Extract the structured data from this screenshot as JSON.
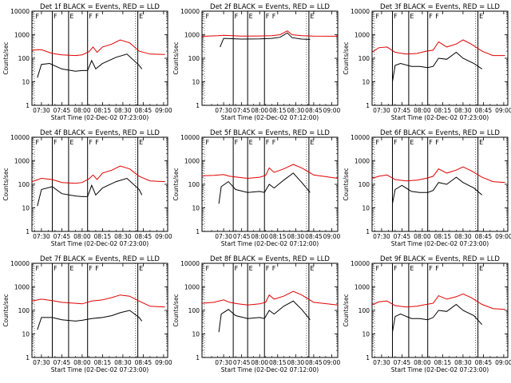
{
  "ylabel": "Counts/sec",
  "xlabel_prefix": "Start Time",
  "yticks": [
    1,
    10,
    100,
    1000,
    10000
  ],
  "ytick_labels": [
    "1",
    "10",
    "100",
    "1000",
    "10000"
  ],
  "colors": {
    "events": "#000000",
    "lld": "#e00000",
    "frame": "#000000"
  },
  "chart_data": [
    {
      "type": "line",
      "title": "Det 1f BLACK = Events, RED = LLD",
      "xlabel": "Start Time (02-Dec-02 07:23:00)",
      "ylabel": "Counts/sec",
      "x_range": [
        "07:23",
        "09:03"
      ],
      "y_range": [
        1,
        10000
      ],
      "y_scale": "log",
      "xtick_labels": [
        "07:30",
        "07:45",
        "08:00",
        "08:15",
        "08:30",
        "08:45",
        "09:00"
      ],
      "markers": [
        "F",
        "F",
        "E",
        "F",
        "F",
        "E"
      ],
      "series": [
        {
          "name": "Events",
          "color": "#000000",
          "times": [
            "07:27",
            "07:30",
            "07:36",
            "07:45",
            "07:55",
            "08:00",
            "08:04",
            "08:07",
            "08:10",
            "08:15",
            "08:25",
            "08:33",
            "08:42",
            "08:44"
          ],
          "values": [
            15,
            55,
            60,
            35,
            28,
            30,
            30,
            80,
            35,
            60,
            110,
            150,
            50,
            35
          ]
        },
        {
          "name": "LLD",
          "color": "#e00000",
          "times": [
            "07:23",
            "07:30",
            "07:38",
            "07:45",
            "07:55",
            "08:00",
            "08:05",
            "08:08",
            "08:11",
            "08:15",
            "08:22",
            "08:28",
            "08:35",
            "08:42",
            "08:50",
            "09:01"
          ],
          "values": [
            220,
            230,
            160,
            140,
            130,
            140,
            190,
            300,
            180,
            300,
            400,
            600,
            450,
            200,
            150,
            145
          ]
        }
      ]
    },
    {
      "type": "line",
      "title": "Det 2f BLACK = Events, RED = LLD",
      "xlabel": "Start Time (02-Dec-02 07:12:00)",
      "ylabel": "Counts/sec",
      "x_range": [
        "07:12",
        "09:05"
      ],
      "y_range": [
        1,
        10000
      ],
      "y_scale": "log",
      "xtick_labels": [
        "07:30",
        "07:45",
        "08:00",
        "08:15",
        "08:30",
        "08:45",
        "09:00"
      ],
      "markers": [
        "F",
        "F",
        "E",
        "F",
        "F",
        "E"
      ],
      "series": [
        {
          "name": "Events",
          "color": "#000000",
          "times": [
            "07:27",
            "07:30",
            "07:45",
            "08:00",
            "08:10",
            "08:17",
            "08:23",
            "08:27",
            "08:35",
            "08:42"
          ],
          "values": [
            300,
            700,
            650,
            660,
            700,
            780,
            1200,
            750,
            650,
            630
          ]
        },
        {
          "name": "LLD",
          "color": "#e00000",
          "times": [
            "07:12",
            "07:25",
            "07:30",
            "07:45",
            "08:00",
            "08:10",
            "08:17",
            "08:23",
            "08:27",
            "08:35",
            "08:45",
            "09:05"
          ],
          "values": [
            850,
            900,
            950,
            870,
            880,
            900,
            1000,
            1450,
            1000,
            900,
            870,
            860
          ]
        }
      ]
    },
    {
      "type": "line",
      "title": "Det 3f BLACK = Events, RED = LLD",
      "xlabel": "Start Time (02-Dec-02 07:23:00)",
      "ylabel": "Counts/sec",
      "x_range": [
        "07:23",
        "09:03"
      ],
      "y_range": [
        1,
        10000
      ],
      "y_scale": "log",
      "xtick_labels": [
        "07:30",
        "07:45",
        "08:00",
        "08:15",
        "08:30",
        "08:45",
        "09:00"
      ],
      "markers": [
        "F",
        "F",
        "E",
        "F",
        "F",
        "E"
      ],
      "series": [
        {
          "name": "Events",
          "color": "#000000",
          "times": [
            "07:38",
            "07:40",
            "07:44",
            "07:52",
            "07:58",
            "08:04",
            "08:08",
            "08:12",
            "08:18",
            "08:25",
            "08:30",
            "08:38",
            "08:44"
          ],
          "values": [
            10,
            50,
            60,
            45,
            45,
            40,
            45,
            100,
            90,
            180,
            100,
            60,
            35
          ]
        },
        {
          "name": "LLD",
          "color": "#e00000",
          "times": [
            "07:23",
            "07:28",
            "07:34",
            "07:40",
            "07:48",
            "07:56",
            "08:03",
            "08:08",
            "08:12",
            "08:18",
            "08:25",
            "08:30",
            "08:36",
            "08:44",
            "08:52",
            "09:01"
          ],
          "values": [
            180,
            280,
            300,
            180,
            150,
            160,
            200,
            220,
            500,
            300,
            400,
            600,
            400,
            200,
            130,
            130
          ]
        }
      ]
    },
    {
      "type": "line",
      "title": "Det 4f BLACK = Events, RED = LLD",
      "xlabel": "Start Time (02-Dec-02 07:23:00)",
      "ylabel": "Counts/sec",
      "x_range": [
        "07:23",
        "09:03"
      ],
      "y_range": [
        1,
        10000
      ],
      "y_scale": "log",
      "xtick_labels": [
        "07:30",
        "07:45",
        "08:00",
        "08:15",
        "08:30",
        "08:45",
        "09:00"
      ],
      "markers": [
        "F",
        "F",
        "E",
        "F",
        "F",
        "E"
      ],
      "series": [
        {
          "name": "Events",
          "color": "#000000",
          "times": [
            "07:27",
            "07:30",
            "07:38",
            "07:45",
            "07:55",
            "08:00",
            "08:04",
            "08:07",
            "08:10",
            "08:15",
            "08:25",
            "08:33",
            "08:42",
            "08:44"
          ],
          "values": [
            12,
            60,
            80,
            40,
            32,
            30,
            30,
            90,
            35,
            70,
            130,
            180,
            60,
            35
          ]
        },
        {
          "name": "LLD",
          "color": "#e00000",
          "times": [
            "07:23",
            "07:30",
            "07:38",
            "07:45",
            "07:55",
            "08:00",
            "08:05",
            "08:08",
            "08:11",
            "08:15",
            "08:22",
            "08:28",
            "08:35",
            "08:42",
            "08:50",
            "09:01"
          ],
          "values": [
            130,
            180,
            160,
            120,
            110,
            120,
            170,
            250,
            160,
            300,
            400,
            600,
            450,
            220,
            140,
            130
          ]
        }
      ]
    },
    {
      "type": "line",
      "title": "Det 5f BLACK = Events, RED = LLD",
      "xlabel": "Start Time (02-Dec-02 07:12:00)",
      "ylabel": "Counts/sec",
      "x_range": [
        "07:12",
        "09:05"
      ],
      "y_range": [
        1,
        10000
      ],
      "y_scale": "log",
      "xtick_labels": [
        "07:30",
        "07:45",
        "08:00",
        "08:15",
        "08:30",
        "08:45",
        "09:00"
      ],
      "markers": [
        "F",
        "F",
        "E",
        "F",
        "F",
        "E"
      ],
      "series": [
        {
          "name": "Events",
          "color": "#000000",
          "times": [
            "07:26",
            "07:28",
            "07:34",
            "07:40",
            "07:50",
            "08:00",
            "08:04",
            "08:08",
            "08:12",
            "08:20",
            "08:28",
            "08:35",
            "08:42"
          ],
          "values": [
            15,
            80,
            130,
            60,
            45,
            50,
            45,
            100,
            70,
            150,
            300,
            120,
            45
          ]
        },
        {
          "name": "LLD",
          "color": "#e00000",
          "times": [
            "07:12",
            "07:22",
            "07:30",
            "07:35",
            "07:42",
            "07:50",
            "08:00",
            "08:05",
            "08:08",
            "08:12",
            "08:20",
            "08:28",
            "08:35",
            "08:45",
            "09:05"
          ],
          "values": [
            230,
            240,
            260,
            220,
            200,
            180,
            200,
            240,
            500,
            320,
            450,
            700,
            500,
            250,
            180
          ]
        }
      ]
    },
    {
      "type": "line",
      "title": "Det 6f BLACK = Events, RED = LLD",
      "xlabel": "Start Time (02-Dec-02 07:23:00)",
      "ylabel": "Counts/sec",
      "x_range": [
        "07:23",
        "09:03"
      ],
      "y_range": [
        1,
        10000
      ],
      "y_scale": "log",
      "xtick_labels": [
        "07:30",
        "07:45",
        "08:00",
        "08:15",
        "08:30",
        "08:45",
        "09:00"
      ],
      "markers": [
        "F",
        "F",
        "E",
        "F",
        "F",
        "E"
      ],
      "series": [
        {
          "name": "Events",
          "color": "#000000",
          "times": [
            "07:38",
            "07:40",
            "07:45",
            "07:52",
            "07:58",
            "08:04",
            "08:08",
            "08:12",
            "08:18",
            "08:25",
            "08:30",
            "08:38",
            "08:44"
          ],
          "values": [
            15,
            60,
            90,
            50,
            45,
            45,
            55,
            120,
            100,
            200,
            120,
            70,
            35
          ]
        },
        {
          "name": "LLD",
          "color": "#e00000",
          "times": [
            "07:23",
            "07:28",
            "07:34",
            "07:40",
            "07:48",
            "07:56",
            "08:03",
            "08:08",
            "08:12",
            "08:18",
            "08:25",
            "08:30",
            "08:36",
            "08:44",
            "08:52",
            "09:01"
          ],
          "values": [
            180,
            220,
            250,
            160,
            140,
            150,
            180,
            220,
            450,
            300,
            400,
            550,
            380,
            200,
            130,
            120
          ]
        }
      ]
    },
    {
      "type": "line",
      "title": "Det 7f BLACK = Events, RED = LLD",
      "xlabel": "Start Time (02-Dec-02 07:23:00)",
      "ylabel": "Counts/sec",
      "x_range": [
        "07:23",
        "09:03"
      ],
      "y_range": [
        1,
        10000
      ],
      "y_scale": "log",
      "xtick_labels": [
        "07:30",
        "07:45",
        "08:00",
        "08:15",
        "08:30",
        "08:45",
        "09:00"
      ],
      "markers": [
        "F",
        "F",
        "E",
        "F",
        "F",
        "E"
      ],
      "series": [
        {
          "name": "Events",
          "color": "#000000",
          "times": [
            "07:27",
            "07:30",
            "07:38",
            "07:45",
            "07:55",
            "08:00",
            "08:07",
            "08:15",
            "08:22",
            "08:28",
            "08:35",
            "08:42",
            "08:44"
          ],
          "values": [
            15,
            50,
            50,
            40,
            35,
            38,
            45,
            50,
            60,
            80,
            100,
            50,
            35
          ]
        },
        {
          "name": "LLD",
          "color": "#e00000",
          "times": [
            "07:23",
            "07:30",
            "07:38",
            "07:45",
            "07:55",
            "08:00",
            "08:07",
            "08:15",
            "08:22",
            "08:28",
            "08:35",
            "08:42",
            "08:50",
            "09:01"
          ],
          "values": [
            250,
            300,
            260,
            220,
            200,
            190,
            250,
            280,
            350,
            450,
            400,
            250,
            150,
            140
          ]
        }
      ]
    },
    {
      "type": "line",
      "title": "Det 8f BLACK = Events, RED = LLD",
      "xlabel": "Start Time (02-Dec-02 07:12:00)",
      "ylabel": "Counts/sec",
      "x_range": [
        "07:12",
        "09:05"
      ],
      "y_range": [
        1,
        10000
      ],
      "y_scale": "log",
      "xtick_labels": [
        "07:30",
        "07:45",
        "08:00",
        "08:15",
        "08:30",
        "08:45",
        "09:00"
      ],
      "markers": [
        "F",
        "F",
        "E",
        "F",
        "F",
        "E"
      ],
      "series": [
        {
          "name": "Events",
          "color": "#000000",
          "times": [
            "07:26",
            "07:28",
            "07:34",
            "07:40",
            "07:50",
            "08:00",
            "08:04",
            "08:08",
            "08:12",
            "08:20",
            "08:28",
            "08:35",
            "08:42"
          ],
          "values": [
            12,
            70,
            110,
            60,
            45,
            50,
            45,
            100,
            70,
            150,
            250,
            110,
            40
          ]
        },
        {
          "name": "LLD",
          "color": "#e00000",
          "times": [
            "07:12",
            "07:22",
            "07:30",
            "07:35",
            "07:42",
            "07:50",
            "08:00",
            "08:05",
            "08:08",
            "08:12",
            "08:20",
            "08:28",
            "08:35",
            "08:45",
            "09:05"
          ],
          "values": [
            200,
            220,
            280,
            220,
            190,
            170,
            190,
            220,
            450,
            300,
            400,
            650,
            450,
            220,
            170
          ]
        }
      ]
    },
    {
      "type": "line",
      "title": "Det 9f BLACK = Events, RED = LLD",
      "xlabel": "Start Time (02-Dec-02 07:23:00)",
      "ylabel": "Counts/sec",
      "x_range": [
        "07:23",
        "09:03"
      ],
      "y_range": [
        1,
        10000
      ],
      "y_scale": "log",
      "xtick_labels": [
        "07:30",
        "07:45",
        "08:00",
        "08:15",
        "08:30",
        "08:45",
        "09:00"
      ],
      "markers": [
        "F",
        "F",
        "E",
        "F",
        "F",
        "E"
      ],
      "series": [
        {
          "name": "Events",
          "color": "#000000",
          "times": [
            "07:38",
            "07:40",
            "07:44",
            "07:52",
            "07:58",
            "08:04",
            "08:08",
            "08:12",
            "08:18",
            "08:25",
            "08:30",
            "08:38",
            "08:44"
          ],
          "values": [
            12,
            55,
            70,
            45,
            45,
            40,
            50,
            100,
            90,
            180,
            100,
            60,
            25
          ]
        },
        {
          "name": "LLD",
          "color": "#e00000",
          "times": [
            "07:23",
            "07:28",
            "07:34",
            "07:40",
            "07:48",
            "07:56",
            "08:03",
            "08:08",
            "08:12",
            "08:18",
            "08:25",
            "08:30",
            "08:36",
            "08:44",
            "08:52",
            "09:01"
          ],
          "values": [
            170,
            230,
            250,
            160,
            140,
            150,
            180,
            200,
            420,
            300,
            380,
            500,
            350,
            180,
            120,
            110
          ]
        }
      ]
    }
  ],
  "chart_times": [
    {
      "vlines": [
        "07:38",
        "07:50",
        "08:04",
        "08:41"
      ]
    },
    {
      "vlines": [
        "07:38",
        "07:50",
        "08:04",
        "08:41"
      ]
    },
    {
      "vlines": [
        "07:38",
        "07:50",
        "08:04",
        "08:41"
      ]
    },
    {
      "vlines": [
        "07:38",
        "07:50",
        "08:04",
        "08:41"
      ]
    },
    {
      "vlines": [
        "07:38",
        "07:50",
        "08:04",
        "08:41"
      ]
    },
    {
      "vlines": [
        "07:38",
        "07:50",
        "08:04",
        "08:41"
      ]
    },
    {
      "vlines": [
        "07:38",
        "07:50",
        "08:04",
        "08:41"
      ]
    },
    {
      "vlines": [
        "07:38",
        "07:50",
        "08:04",
        "08:41"
      ]
    },
    {
      "vlines": [
        "07:38",
        "07:50",
        "08:04",
        "08:41"
      ]
    }
  ]
}
